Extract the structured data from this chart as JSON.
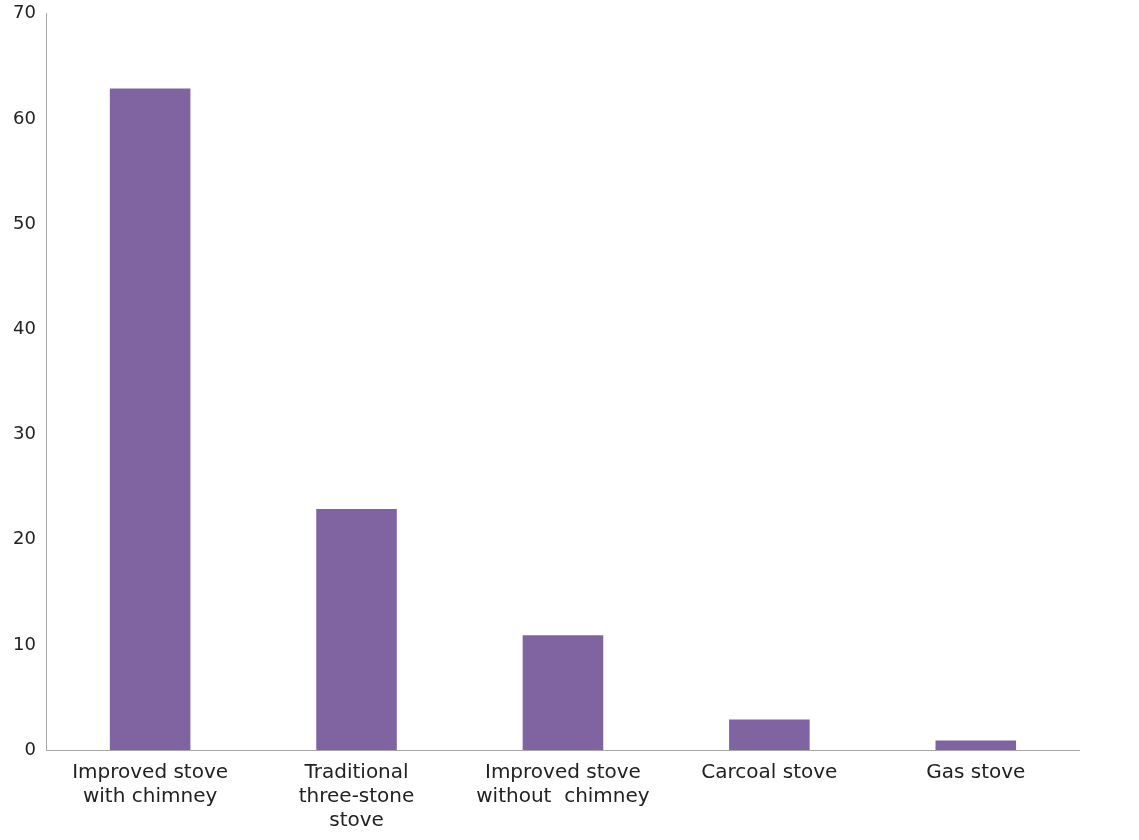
{
  "chart_data": {
    "type": "bar",
    "categories": [
      "Improved stove with chimney",
      "Traditional three-stone stove",
      "Improved stove without  chimney",
      "Carcoal stove",
      "Gas stove"
    ],
    "values": [
      63,
      23,
      11,
      3,
      1
    ],
    "color": "#8064a2",
    "ylim": [
      0,
      70
    ],
    "yticks": [
      0,
      10,
      20,
      30,
      40,
      50,
      60,
      70
    ],
    "grid": false
  }
}
